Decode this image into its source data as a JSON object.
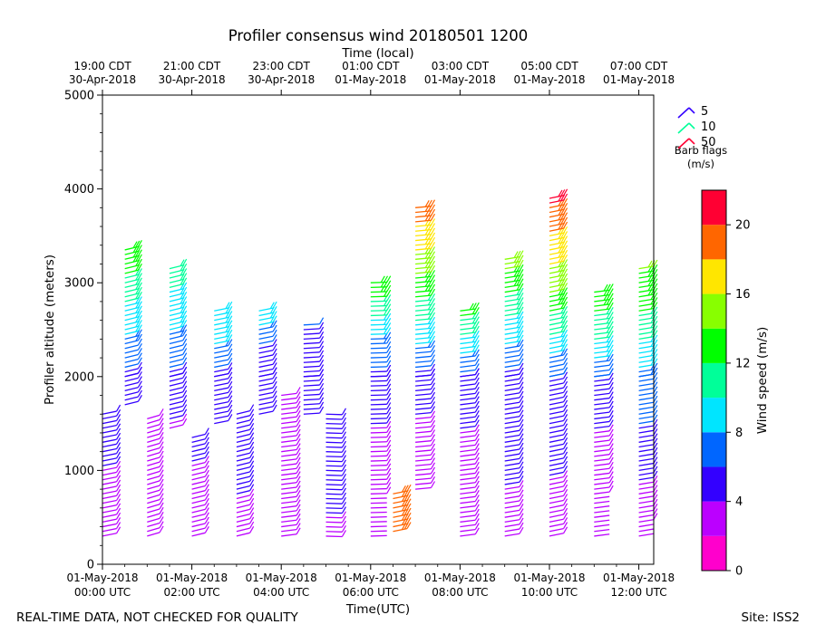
{
  "chart_data": {
    "type": "wind-barb-profile",
    "title": "Profiler consensus wind 20180501 1200",
    "top_axis_label": "Time (local)",
    "xlabel": "Time(UTC)",
    "ylabel": "Profiler altitude (meters)",
    "ylim": [
      0,
      5000
    ],
    "xlim_hours_utc": [
      0,
      12.33
    ],
    "y_major_ticks": [
      0,
      1000,
      2000,
      3000,
      4000,
      5000
    ],
    "y_minor_step": 200,
    "bottom_ticks": [
      {
        "hour": 0,
        "line1": "01-May-2018",
        "line2": "00:00 UTC"
      },
      {
        "hour": 2,
        "line1": "01-May-2018",
        "line2": "02:00 UTC"
      },
      {
        "hour": 4,
        "line1": "01-May-2018",
        "line2": "04:00 UTC"
      },
      {
        "hour": 6,
        "line1": "01-May-2018",
        "line2": "06:00 UTC"
      },
      {
        "hour": 8,
        "line1": "01-May-2018",
        "line2": "08:00 UTC"
      },
      {
        "hour": 10,
        "line1": "01-May-2018",
        "line2": "10:00 UTC"
      },
      {
        "hour": 12,
        "line1": "01-May-2018",
        "line2": "12:00 UTC"
      }
    ],
    "top_ticks": [
      {
        "hour": 0,
        "line1": "19:00 CDT",
        "line2": "30-Apr-2018"
      },
      {
        "hour": 2,
        "line1": "21:00 CDT",
        "line2": "30-Apr-2018"
      },
      {
        "hour": 4,
        "line1": "23:00 CDT",
        "line2": "30-Apr-2018"
      },
      {
        "hour": 6,
        "line1": "01:00 CDT",
        "line2": "01-May-2018"
      },
      {
        "hour": 8,
        "line1": "03:00 CDT",
        "line2": "01-May-2018"
      },
      {
        "hour": 10,
        "line1": "05:00 CDT",
        "line2": "01-May-2018"
      },
      {
        "hour": 12,
        "line1": "07:00 CDT",
        "line2": "01-May-2018"
      }
    ],
    "colorbar": {
      "label": "Wind speed (m/s)",
      "range": [
        0,
        22
      ],
      "ticks": [
        0,
        4,
        8,
        12,
        16,
        20
      ],
      "colors": [
        "#ff00cc",
        "#bb00ff",
        "#3300ff",
        "#0066ff",
        "#00e5ff",
        "#00ff99",
        "#00ff00",
        "#88ff00",
        "#ffe600",
        "#ff6600",
        "#ff0033"
      ]
    },
    "barb_flag_legend": {
      "title_line1": "Barb flags",
      "title_line2": "(m/s)",
      "items": [
        {
          "label": "5",
          "color": "#3300ff"
        },
        {
          "label": "10",
          "color": "#00ff99"
        },
        {
          "label": "50",
          "color": "#ff0033"
        }
      ]
    },
    "columns": [
      {
        "hour": 0.0,
        "low": {
          "from": 300,
          "to": 1600,
          "speed": [
            2.5,
            3.8,
            5.5
          ]
        },
        "high": null,
        "dir": 240
      },
      {
        "hour": 0.5,
        "low": {
          "from": 1700,
          "to": 2000,
          "speed": [
            5.0,
            5.0,
            5.0
          ]
        },
        "high": {
          "from": 2000,
          "to": 3350,
          "speed": [
            5.5,
            9.5,
            13.5
          ]
        },
        "dir": 235
      },
      {
        "hour": 1.0,
        "low": {
          "from": 300,
          "to": 1550,
          "speed": [
            3.0,
            3.5,
            3.2
          ]
        },
        "high": null,
        "dir": 230
      },
      {
        "hour": 1.5,
        "low": {
          "from": 1450,
          "to": 2000,
          "speed": [
            3.5,
            5.0,
            5.0
          ]
        },
        "high": {
          "from": 2000,
          "to": 3150,
          "speed": [
            5.5,
            8.5,
            11.0
          ]
        },
        "dir": 235
      },
      {
        "hour": 2.0,
        "low": {
          "from": 300,
          "to": 1350,
          "speed": [
            3.0,
            3.5,
            4.5
          ]
        },
        "high": null,
        "dir": 235
      },
      {
        "hour": 2.5,
        "low": {
          "from": 1500,
          "to": 2000,
          "speed": [
            4.5,
            5.0,
            5.5
          ]
        },
        "high": {
          "from": 2000,
          "to": 2700,
          "speed": [
            5.5,
            8.0,
            9.5
          ]
        },
        "dir": 240
      },
      {
        "hour": 3.0,
        "low": {
          "from": 300,
          "to": 1600,
          "speed": [
            3.0,
            4.5,
            5.0
          ]
        },
        "high": null,
        "dir": 235
      },
      {
        "hour": 3.5,
        "low": {
          "from": 1600,
          "to": 2000,
          "speed": [
            5.0,
            5.0,
            5.0
          ]
        },
        "high": {
          "from": 2000,
          "to": 2700,
          "speed": [
            5.5,
            6.0,
            9.5
          ]
        },
        "dir": 240
      },
      {
        "hour": 4.0,
        "low": {
          "from": 300,
          "to": 1800,
          "speed": [
            3.0,
            3.5,
            3.5
          ]
        },
        "high": null,
        "dir": 250
      },
      {
        "hour": 4.5,
        "low": {
          "from": 1600,
          "to": 2000,
          "speed": [
            4.0,
            5.0,
            5.0
          ]
        },
        "high": {
          "from": 2000,
          "to": 2550,
          "speed": [
            5.0,
            5.5,
            6.0
          ]
        },
        "dir": 260
      },
      {
        "hour": 5.0,
        "low": {
          "from": 300,
          "to": 1600,
          "speed": [
            3.5,
            5.0,
            5.0
          ]
        },
        "high": null,
        "dir": 275
      },
      {
        "hour": 6.0,
        "low": {
          "from": 300,
          "to": 2000,
          "speed": [
            2.0,
            3.0,
            5.5
          ]
        },
        "high": {
          "from": 2000,
          "to": 3000,
          "speed": [
            5.5,
            8.5,
            13.5
          ]
        },
        "dir": 265
      },
      {
        "hour": 6.5,
        "low": {
          "from": 350,
          "to": 750,
          "speed": [
            19.0,
            18.0,
            19.0
          ]
        },
        "high": null,
        "dir": 240
      },
      {
        "hour": 7.0,
        "low": {
          "from": 800,
          "to": 2000,
          "speed": [
            2.5,
            3.5,
            5.0
          ]
        },
        "high": {
          "from": 2000,
          "to": 3800,
          "speed": [
            5.5,
            12.5,
            19.5
          ]
        },
        "dir": 255
      },
      {
        "hour": 8.0,
        "low": {
          "from": 300,
          "to": 2000,
          "speed": [
            3.0,
            3.5,
            5.0
          ]
        },
        "high": {
          "from": 2000,
          "to": 2700,
          "speed": [
            5.5,
            9.0,
            12.5
          ]
        },
        "dir": 250
      },
      {
        "hour": 9.0,
        "low": {
          "from": 300,
          "to": 2000,
          "speed": [
            2.5,
            5.0,
            5.5
          ]
        },
        "high": {
          "from": 2000,
          "to": 3250,
          "speed": [
            5.5,
            10.0,
            15.0
          ]
        },
        "dir": 245
      },
      {
        "hour": 10.0,
        "low": {
          "from": 300,
          "to": 2000,
          "speed": [
            2.5,
            4.5,
            6.0
          ]
        },
        "high": {
          "from": 2000,
          "to": 3900,
          "speed": [
            6.0,
            14.5,
            20.5
          ]
        },
        "dir": 240
      },
      {
        "hour": 11.0,
        "low": {
          "from": 300,
          "to": 2000,
          "speed": [
            2.0,
            3.0,
            6.0
          ]
        },
        "high": {
          "from": 2000,
          "to": 2900,
          "speed": [
            6.0,
            10.5,
            13.5
          ]
        },
        "dir": 250
      },
      {
        "hour": 12.0,
        "low": {
          "from": 300,
          "to": 2000,
          "speed": [
            2.0,
            5.0,
            7.5
          ]
        },
        "high": {
          "from": 2000,
          "to": 3150,
          "speed": [
            7.5,
            11.5,
            14.0
          ]
        },
        "dir": 245
      }
    ]
  },
  "footer": {
    "disclaimer": "REAL-TIME DATA, NOT CHECKED FOR QUALITY",
    "site": "Site: ISS2"
  }
}
